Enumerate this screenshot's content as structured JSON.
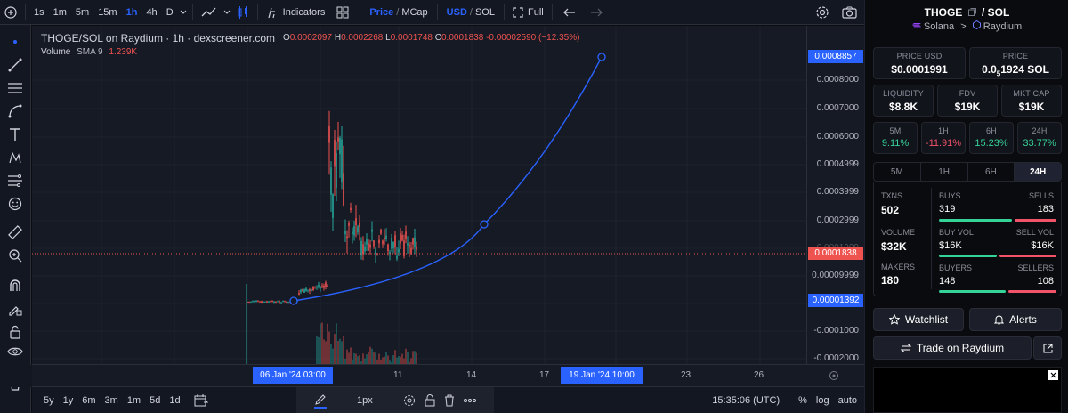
{
  "toolbar": {
    "intervals": [
      "1s",
      "1m",
      "5m",
      "15m",
      "1h",
      "4h",
      "D"
    ],
    "active_interval": "1h",
    "indicators_label": "Indicators",
    "price_label": "Price",
    "mcap_label": "MCap",
    "usd_label": "USD",
    "sol_label": "SOL",
    "full_label": "Full",
    "slash": "/"
  },
  "chart": {
    "title": "THOGE/SOL on Raydium · 1h · dexscreener.com",
    "ohlc": {
      "o_label": "O",
      "o": "0.0002097",
      "h_label": "H",
      "h": "0.0002268",
      "l_label": "L",
      "l": "0.0001748",
      "c_label": "C",
      "c": "0.0001838",
      "change": "-0.00002590 (−12.35%)"
    },
    "volume_legend": {
      "label": "Volume",
      "sma": "SMA 9",
      "value": "1.239K"
    },
    "price_axis": [
      "0.0008000",
      "0.0007000",
      "0.0006000",
      "0.0004999",
      "0.0003999",
      "0.0002999",
      "0.0001999",
      "0.00009999",
      "-0.0001000",
      "-0.0002000"
    ],
    "price_tags": {
      "top": "0.0008857",
      "current": "0.0001838",
      "bottom": "0.00001392"
    },
    "time_axis": [
      "11",
      "14",
      "17",
      "23",
      "26"
    ],
    "time_tags": {
      "left": "06 Jan '24   03:00",
      "right": "19 Jan '24   10:00"
    },
    "colors": {
      "up": "#26a69a",
      "down": "#ef5350",
      "drawing": "#2962ff",
      "accent": "#2962ff"
    }
  },
  "bottombar": {
    "ranges": [
      "5y",
      "1y",
      "6m",
      "3m",
      "1m",
      "5d",
      "1d"
    ],
    "stroke_width": "1px",
    "clock": "15:35:06 (UTC)",
    "percent": "%",
    "log": "log",
    "auto": "auto"
  },
  "panel": {
    "pair": "THOGE",
    "pair_quote": "/ SOL",
    "chain": "Solana",
    "dex": "Raydium",
    "chevron": ">",
    "price_usd_label": "PRICE USD",
    "price_usd": "$0.0001991",
    "price_sol_label": "PRICE",
    "price_sol_prefix": "0.0",
    "price_sol_sub": "5",
    "price_sol_rest": "1924 SOL",
    "liquidity_label": "LIQUIDITY",
    "liquidity": "$8.8K",
    "fdv_label": "FDV",
    "fdv": "$19K",
    "mcap_label": "MKT CAP",
    "mcap": "$19K",
    "changes": [
      {
        "label": "5M",
        "value": "9.11%"
      },
      {
        "label": "1H",
        "value": "-11.91%"
      },
      {
        "label": "6H",
        "value": "15.23%"
      },
      {
        "label": "24H",
        "value": "33.77%"
      }
    ],
    "tabs": [
      "5M",
      "1H",
      "6H",
      "24H"
    ],
    "active_tab": "24H",
    "txns_label": "TXNS",
    "txns": "502",
    "buys_label": "BUYS",
    "buys": "319",
    "sells_label": "SELLS",
    "sells": "183",
    "volume_label": "VOLUME",
    "volume": "$32K",
    "buy_vol_label": "BUY VOL",
    "buy_vol": "$16K",
    "sell_vol_label": "SELL VOL",
    "sell_vol": "$16K",
    "makers_label": "MAKERS",
    "makers": "180",
    "buyers_label": "BUYERS",
    "buyers": "148",
    "sellers_label": "SELLERS",
    "sellers": "108",
    "buys_ratio": 0.635,
    "buy_vol_ratio": 0.5,
    "buyers_ratio": 0.578,
    "watchlist_label": "Watchlist",
    "alerts_label": "Alerts",
    "trade_label": "Trade on Raydium"
  }
}
